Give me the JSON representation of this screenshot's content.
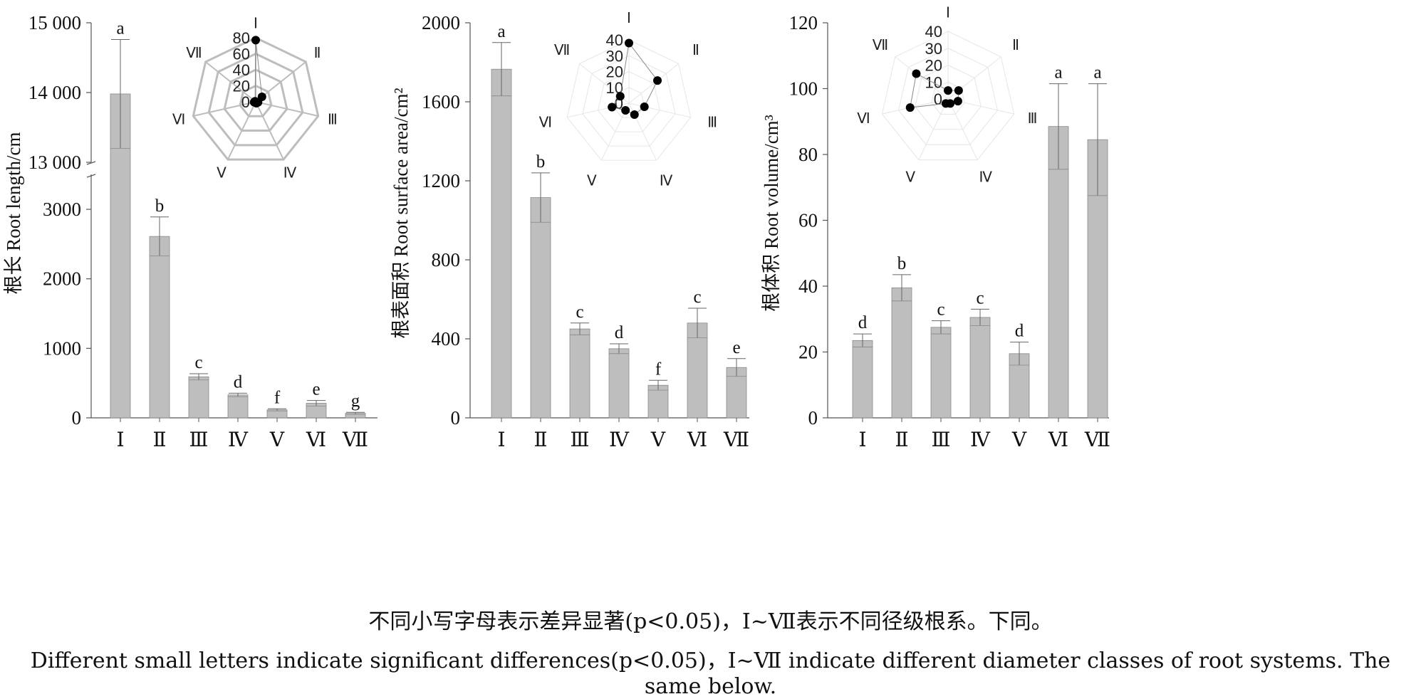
{
  "colors": {
    "bar": "#bebebe",
    "bar_edge": "#8a8a8a",
    "axis": "#555555",
    "radar_grid": "#bdbdbd",
    "radar_grid_light": "#e6e6e6",
    "dot": "#000000"
  },
  "caption": {
    "zh": "不同小写字母表示差异显著(p<0.05)，Ⅰ~Ⅶ表示不同径级根系。下同。",
    "en": "Different small letters indicate significant differences(p<0.05)，Ⅰ~Ⅶ indicate different diameter classes of root systems. The same below."
  },
  "chart_data": [
    {
      "type": "bar",
      "ylabel": "根长 Root length/cm",
      "categories": [
        "Ⅰ",
        "Ⅱ",
        "Ⅲ",
        "Ⅳ",
        "Ⅴ",
        "Ⅵ",
        "Ⅶ"
      ],
      "values": [
        13980,
        2610,
        590,
        330,
        115,
        210,
        65
      ],
      "errors": [
        780,
        280,
        45,
        25,
        15,
        40,
        15
      ],
      "letters": [
        "a",
        "b",
        "c",
        "d",
        "f",
        "e",
        "g"
      ],
      "y_axis_break": true,
      "lower_ylim": [
        0,
        3400
      ],
      "lower_ticks": [
        0,
        1000,
        2000,
        3000
      ],
      "upper_ylim": [
        13000,
        15000
      ],
      "upper_ticks": [
        "13 000",
        "14 000",
        "15 000"
      ],
      "upper_tick_values": [
        13000,
        14000,
        15000
      ],
      "inset": {
        "type": "radar",
        "axes": [
          "Ⅰ",
          "Ⅱ",
          "Ⅲ",
          "Ⅳ",
          "Ⅴ",
          "Ⅵ",
          "Ⅶ"
        ],
        "rlim": [
          0,
          80
        ],
        "ticks": [
          0,
          20,
          40,
          60,
          80
        ],
        "values": [
          77,
          10,
          3,
          2,
          1,
          2,
          1
        ]
      }
    },
    {
      "type": "bar",
      "ylabel": "根表面积 Root surface area/cm²",
      "categories": [
        "Ⅰ",
        "Ⅱ",
        "Ⅲ",
        "Ⅳ",
        "Ⅴ",
        "Ⅵ",
        "Ⅶ"
      ],
      "values": [
        1765,
        1115,
        450,
        350,
        165,
        480,
        255
      ],
      "errors": [
        135,
        125,
        30,
        25,
        25,
        75,
        45
      ],
      "letters": [
        "a",
        "b",
        "c",
        "d",
        "f",
        "c",
        "e"
      ],
      "ylim": [
        0,
        2000
      ],
      "ticks": [
        0,
        400,
        800,
        1200,
        1600,
        2000
      ],
      "inset": {
        "type": "radar",
        "axes": [
          "Ⅰ",
          "Ⅱ",
          "Ⅲ",
          "Ⅳ",
          "Ⅴ",
          "Ⅵ",
          "Ⅶ"
        ],
        "rlim": [
          0,
          40
        ],
        "ticks": [
          0,
          10,
          20,
          30,
          40
        ],
        "values": [
          38,
          23,
          10,
          8,
          5,
          11,
          7
        ]
      }
    },
    {
      "type": "bar",
      "ylabel": "根体积 Root volume/cm³",
      "categories": [
        "Ⅰ",
        "Ⅱ",
        "Ⅲ",
        "Ⅳ",
        "Ⅴ",
        "Ⅵ",
        "Ⅶ"
      ],
      "values": [
        23.5,
        39.5,
        27.5,
        30.5,
        19.5,
        88.5,
        84.5
      ],
      "errors": [
        2,
        4,
        2,
        2.5,
        3.5,
        13,
        17
      ],
      "letters": [
        "d",
        "b",
        "c",
        "c",
        "d",
        "a",
        "a"
      ],
      "ylim": [
        0,
        120
      ],
      "ticks": [
        0,
        20,
        40,
        60,
        80,
        100,
        120
      ],
      "inset": {
        "type": "radar",
        "axes": [
          "Ⅰ",
          "Ⅱ",
          "Ⅲ",
          "Ⅳ",
          "Ⅴ",
          "Ⅵ",
          "Ⅶ"
        ],
        "rlim": [
          0,
          40
        ],
        "ticks": [
          0,
          10,
          20,
          30,
          40
        ],
        "values": [
          5,
          8,
          6,
          3,
          3,
          23,
          24
        ]
      }
    }
  ]
}
